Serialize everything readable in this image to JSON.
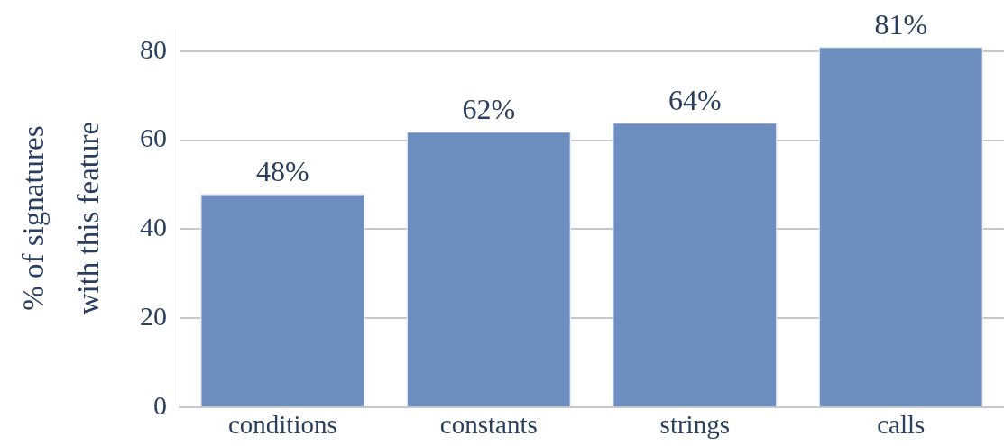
{
  "chart_data": {
    "type": "bar",
    "categories": [
      "conditions",
      "constants",
      "strings",
      "calls"
    ],
    "values": [
      48,
      62,
      64,
      81
    ],
    "color": "#6c8ebf",
    "value_labels": [
      "48%",
      "62%",
      "64%",
      "81%"
    ],
    "ylabel": "% of signatures\nwith this feature",
    "ylim": [
      0,
      85
    ],
    "yticks": [
      0,
      20,
      40,
      60,
      80
    ],
    "grid": "y",
    "legend": false
  }
}
